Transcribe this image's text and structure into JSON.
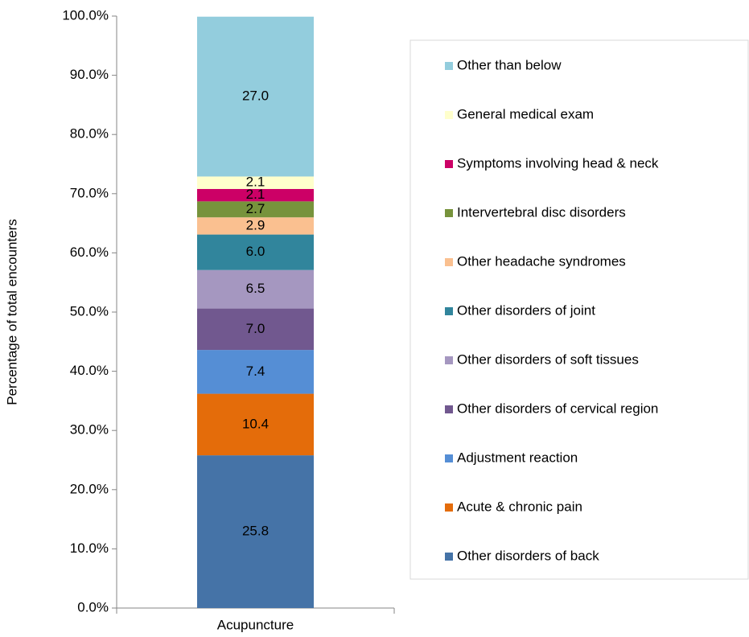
{
  "chart_data": {
    "type": "stacked-bar",
    "y_label": "Percentage of total encounters",
    "categories": [
      "Acupuncture"
    ],
    "series": [
      {
        "name": "Other disorders of back",
        "color": "#4573a7",
        "values": [
          25.8
        ]
      },
      {
        "name": "Acute & chronic pain",
        "color": "#e46c0a",
        "values": [
          10.4
        ]
      },
      {
        "name": "Adjustment reaction",
        "color": "#558ed5",
        "values": [
          7.4
        ]
      },
      {
        "name": "Other disorders of cervical region",
        "color": "#71588f",
        "values": [
          7
        ],
        "value_labels": [
          "7.0"
        ]
      },
      {
        "name": "Other disorders of soft tissues",
        "color": "#a597c0",
        "values": [
          6.5
        ]
      },
      {
        "name": "Other disorders of joint",
        "color": "#31859c",
        "values": [
          6
        ],
        "value_labels": [
          "6.0"
        ]
      },
      {
        "name": "Other headache syndromes",
        "color": "#fac090",
        "values": [
          2.9
        ]
      },
      {
        "name": "Intervertebral disc disorders",
        "color": "#77933c",
        "values": [
          2.7
        ]
      },
      {
        "name": "Symptoms involving head & neck",
        "color": "#cc0066",
        "values": [
          2.1
        ]
      },
      {
        "name": "General medical exam",
        "color": "#ffffcc",
        "values": [
          2.1
        ]
      },
      {
        "name": "Other than below",
        "color": "#93cddd",
        "values": [
          27
        ],
        "value_labels": [
          "27.0"
        ]
      }
    ],
    "ylim": [
      0,
      100
    ],
    "yticks": [
      {
        "value": 0,
        "label": "0.0%"
      },
      {
        "value": 10,
        "label": "10.0%"
      },
      {
        "value": 20,
        "label": "20.0%"
      },
      {
        "value": 30,
        "label": "30.0%"
      },
      {
        "value": 40,
        "label": "40.0%"
      },
      {
        "value": 50,
        "label": "50.0%"
      },
      {
        "value": 60,
        "label": "60.0%"
      },
      {
        "value": 70,
        "label": "70.0%"
      },
      {
        "value": 80,
        "label": "80.0%"
      },
      {
        "value": 90,
        "label": "90.0%"
      },
      {
        "value": 100,
        "label": "100.0%"
      }
    ],
    "legend": "right"
  }
}
